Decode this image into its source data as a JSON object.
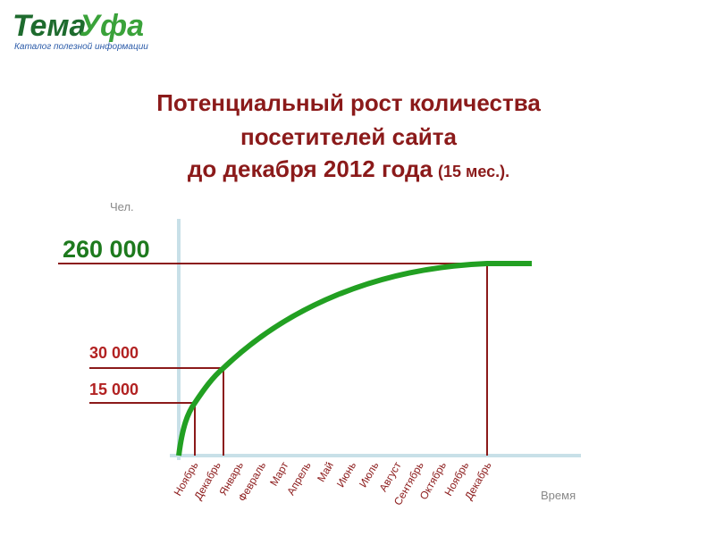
{
  "logo": {
    "part1": "Тема",
    "part2": "Уфа",
    "tagline": "Каталог полезной информации"
  },
  "title": {
    "line1": "Потенциальный рост количества",
    "line2": "посетителей сайта",
    "line3": "до декабря 2012 года",
    "note": "(15 мес.)."
  },
  "y_axis_label": "Чел.",
  "x_axis_label": "Время",
  "levels": [
    "260 000",
    "30 000",
    "15 000"
  ],
  "months": [
    "Ноябрь",
    "Декабрь",
    "Январь",
    "Февраль",
    "Март",
    "Апрель",
    "Май",
    "Июнь",
    "Июль",
    "Август",
    "Сентябрь",
    "Октябрь",
    "Ноябрь",
    "Декабрь"
  ]
}
